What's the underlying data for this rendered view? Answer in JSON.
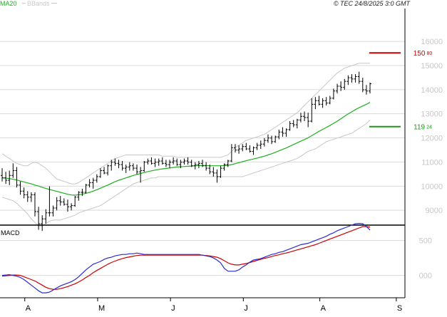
{
  "chart_data": {
    "type": "line",
    "copyright": "© TEC 24/8/2025 3:0 GMT",
    "legend": [
      {
        "name": "MA20",
        "color": "#1fae1f"
      },
      {
        "name": "BBands",
        "color": "#c7c7c7"
      }
    ],
    "price_panel": {
      "ylim": [
        8000,
        16800
      ],
      "yticks": [
        {
          "value": 9000,
          "label": "9000"
        },
        {
          "value": 10000,
          "label": "10000"
        },
        {
          "value": 11000,
          "label": "11000"
        },
        {
          "value": 12000,
          "label": "12000"
        },
        {
          "value": 13000,
          "label": "13000"
        },
        {
          "value": 14000,
          "label": "14000"
        },
        {
          "value": 15000,
          "label": "15000"
        },
        {
          "value": 16000,
          "label": "16000"
        }
      ],
      "ohlc": [
        [
          10000,
          10300,
          9750,
          9900
        ],
        [
          9900,
          10150,
          9650,
          9800
        ],
        [
          9800,
          10200,
          9600,
          10000
        ],
        [
          10000,
          10500,
          9900,
          10200
        ],
        [
          10200,
          10350,
          9500,
          9600
        ],
        [
          9600,
          9750,
          9200,
          9350
        ],
        [
          9350,
          9500,
          9050,
          9200
        ],
        [
          9200,
          9350,
          8900,
          9100
        ],
        [
          9100,
          9300,
          8900,
          9200
        ],
        [
          9200,
          9300,
          8300,
          8500
        ],
        [
          8500,
          8700,
          7750,
          8000
        ],
        [
          8000,
          8350,
          7700,
          8200
        ],
        [
          8200,
          8600,
          8000,
          8450
        ],
        [
          8450,
          9550,
          8300,
          8450
        ],
        [
          8450,
          8750,
          8300,
          8650
        ],
        [
          8650,
          9100,
          8550,
          8950
        ],
        [
          8950,
          9150,
          8750,
          8900
        ],
        [
          8900,
          9050,
          8750,
          8800
        ],
        [
          8800,
          9000,
          8500,
          8700
        ],
        [
          8700,
          8850,
          8550,
          8750
        ],
        [
          8750,
          9150,
          8700,
          9100
        ],
        [
          9100,
          9350,
          8950,
          9300
        ],
        [
          9300,
          9450,
          9150,
          9300
        ],
        [
          9300,
          9650,
          9250,
          9600
        ],
        [
          9600,
          9850,
          9500,
          9700
        ],
        [
          9700,
          9900,
          9450,
          9800
        ],
        [
          9800,
          10050,
          9700,
          9950
        ],
        [
          9950,
          10300,
          9900,
          10200
        ],
        [
          10200,
          10350,
          10050,
          10100
        ],
        [
          10100,
          10450,
          10000,
          10400
        ],
        [
          10400,
          10650,
          10200,
          10550
        ],
        [
          10550,
          10700,
          10400,
          10500
        ],
        [
          10500,
          10650,
          10300,
          10450
        ],
        [
          10450,
          10600,
          10200,
          10300
        ],
        [
          10300,
          10450,
          10100,
          10350
        ],
        [
          10350,
          10550,
          10200,
          10400
        ],
        [
          10400,
          10500,
          10200,
          10300
        ],
        [
          10300,
          10450,
          10050,
          10150
        ],
        [
          10150,
          10350,
          9700,
          10200
        ],
        [
          10200,
          10600,
          10150,
          10550
        ],
        [
          10550,
          10700,
          10450,
          10600
        ],
        [
          10600,
          10750,
          10450,
          10500
        ],
        [
          10500,
          10700,
          10350,
          10550
        ],
        [
          10550,
          10700,
          10400,
          10600
        ],
        [
          10600,
          10750,
          10450,
          10500
        ],
        [
          10500,
          10650,
          10350,
          10450
        ],
        [
          10450,
          10650,
          10300,
          10550
        ],
        [
          10550,
          10750,
          10450,
          10600
        ],
        [
          10600,
          10700,
          10400,
          10450
        ],
        [
          10450,
          10650,
          10300,
          10550
        ],
        [
          10550,
          10700,
          10450,
          10600
        ],
        [
          10600,
          10750,
          10450,
          10550
        ],
        [
          10550,
          10650,
          10350,
          10400
        ],
        [
          10400,
          10550,
          10250,
          10450
        ],
        [
          10450,
          10600,
          10300,
          10500
        ],
        [
          10500,
          10650,
          10350,
          10400
        ],
        [
          10400,
          10550,
          10200,
          10300
        ],
        [
          10300,
          10450,
          10050,
          10150
        ],
        [
          10150,
          10350,
          9950,
          10100
        ],
        [
          10100,
          10250,
          9700,
          9950
        ],
        [
          9950,
          10400,
          9900,
          10300
        ],
        [
          10300,
          10500,
          10200,
          10450
        ],
        [
          10450,
          10650,
          10350,
          10600
        ],
        [
          10600,
          11300,
          10550,
          11150
        ],
        [
          11150,
          11300,
          10950,
          11050
        ],
        [
          11050,
          11250,
          10900,
          11100
        ],
        [
          11100,
          11300,
          11000,
          11200
        ],
        [
          11200,
          11350,
          11050,
          11100
        ],
        [
          11100,
          11250,
          10950,
          11000
        ],
        [
          11000,
          11200,
          10850,
          11150
        ],
        [
          11150,
          11350,
          11050,
          11250
        ],
        [
          11250,
          11450,
          11100,
          11300
        ],
        [
          11300,
          11550,
          11200,
          11450
        ],
        [
          11450,
          11700,
          11350,
          11550
        ],
        [
          11550,
          11650,
          11300,
          11400
        ],
        [
          11400,
          11650,
          11350,
          11600
        ],
        [
          11600,
          11900,
          11500,
          11800
        ],
        [
          11800,
          12000,
          11600,
          11750
        ],
        [
          11750,
          11950,
          11600,
          11900
        ],
        [
          11900,
          12250,
          11850,
          12150
        ],
        [
          12150,
          12300,
          12000,
          12100
        ],
        [
          12100,
          12350,
          11950,
          12300
        ],
        [
          12300,
          12600,
          12200,
          12450
        ],
        [
          12450,
          12650,
          12250,
          12400
        ],
        [
          12400,
          12600,
          12000,
          12250
        ],
        [
          12250,
          13200,
          12200,
          12950
        ],
        [
          12950,
          13250,
          12750,
          13100
        ],
        [
          13100,
          13300,
          12900,
          12950
        ],
        [
          12950,
          13200,
          12800,
          13100
        ],
        [
          13100,
          13250,
          12900,
          13000
        ],
        [
          13000,
          13300,
          12950,
          13200
        ],
        [
          13200,
          13600,
          13150,
          13500
        ],
        [
          13500,
          13800,
          13400,
          13700
        ],
        [
          13700,
          13900,
          13500,
          13650
        ],
        [
          13650,
          14000,
          13550,
          13900
        ],
        [
          13900,
          14150,
          13750,
          14050
        ],
        [
          14050,
          14200,
          13850,
          14000
        ],
        [
          14000,
          14200,
          13850,
          14100
        ],
        [
          14100,
          14300,
          13800,
          13900
        ],
        [
          13900,
          14050,
          13450,
          13550
        ],
        [
          13550,
          13750,
          13350,
          13500
        ],
        [
          13500,
          13850,
          13400,
          13800
        ]
      ],
      "ma20": [
        9900,
        9890,
        9870,
        9840,
        9810,
        9770,
        9730,
        9690,
        9650,
        9600,
        9560,
        9510,
        9460,
        9420,
        9380,
        9340,
        9300,
        9260,
        9220,
        9190,
        9180,
        9200,
        9220,
        9260,
        9300,
        9350,
        9410,
        9470,
        9540,
        9600,
        9670,
        9740,
        9800,
        9850,
        9900,
        9950,
        10000,
        10040,
        10080,
        10120,
        10160,
        10190,
        10220,
        10250,
        10270,
        10290,
        10310,
        10330,
        10350,
        10360,
        10370,
        10380,
        10390,
        10400,
        10410,
        10410,
        10410,
        10400,
        10400,
        10400,
        10400,
        10410,
        10420,
        10450,
        10490,
        10530,
        10570,
        10610,
        10650,
        10680,
        10720,
        10760,
        10800,
        10850,
        10900,
        10960,
        11020,
        11080,
        11140,
        11210,
        11280,
        11350,
        11420,
        11490,
        11560,
        11650,
        11740,
        11830,
        11910,
        11990,
        12070,
        12160,
        12250,
        12350,
        12450,
        12550,
        12640,
        12730,
        12810,
        12880,
        12950,
        13030
      ],
      "bb_upper": [
        10900,
        10800,
        10700,
        10600,
        10500,
        10450,
        10400,
        10400,
        10500,
        10550,
        10500,
        10400,
        10300,
        10150,
        10000,
        9850,
        9800,
        9750,
        9700,
        9650,
        9650,
        9700,
        9800,
        9900,
        10000,
        10100,
        10200,
        10300,
        10400,
        10500,
        10600,
        10700,
        10750,
        10800,
        10850,
        10850,
        10850,
        10850,
        10850,
        10850,
        10850,
        10850,
        10850,
        10850,
        10800,
        10800,
        10800,
        10800,
        10750,
        10750,
        10750,
        10750,
        10750,
        10750,
        10750,
        10750,
        10750,
        10750,
        10750,
        10750,
        10750,
        10800,
        10850,
        11000,
        11150,
        11250,
        11350,
        11450,
        11500,
        11550,
        11600,
        11650,
        11700,
        11800,
        11900,
        12000,
        12100,
        12200,
        12300,
        12400,
        12500,
        12600,
        12750,
        12900,
        13050,
        13200,
        13350,
        13500,
        13650,
        13800,
        13950,
        14100,
        14250,
        14350,
        14450,
        14500,
        14550,
        14600,
        14650,
        14650,
        14650,
        14650
      ],
      "bb_lower": [
        9100,
        9050,
        9000,
        8950,
        8850,
        8700,
        8550,
        8400,
        8200,
        8050,
        7900,
        7900,
        8000,
        8100,
        8150,
        8150,
        8150,
        8200,
        8250,
        8300,
        8350,
        8450,
        8500,
        8550,
        8600,
        8650,
        8700,
        8750,
        8850,
        8950,
        9050,
        9150,
        9250,
        9350,
        9450,
        9550,
        9650,
        9700,
        9750,
        9800,
        9850,
        9900,
        9900,
        9950,
        9950,
        9950,
        9950,
        9950,
        9950,
        9950,
        9950,
        9950,
        9950,
        9950,
        9950,
        9950,
        9950,
        9950,
        9950,
        9950,
        9950,
        9950,
        9950,
        9950,
        9950,
        9950,
        9950,
        10000,
        10050,
        10100,
        10150,
        10200,
        10250,
        10300,
        10350,
        10400,
        10450,
        10500,
        10550,
        10600,
        10650,
        10700,
        10800,
        10900,
        11000,
        11050,
        11100,
        11200,
        11300,
        11400,
        11450,
        11500,
        11550,
        11600,
        11650,
        11700,
        11750,
        11850,
        11950,
        12050,
        12150,
        12300
      ],
      "levels": [
        {
          "value": 15080,
          "label": "150",
          "sublabel": "80",
          "color": "#cc0000"
        },
        {
          "value": 12024,
          "label": "119",
          "sublabel": "24",
          "color": "#1a9a1a"
        }
      ]
    },
    "macd_panel": {
      "title": "MACD",
      "ylim": [
        -300,
        700
      ],
      "yticks": [
        {
          "value": 500,
          "label": "500"
        },
        {
          "value": 0,
          "label": "000"
        }
      ],
      "macd": [
        0,
        5,
        10,
        0,
        -10,
        -30,
        -60,
        -100,
        -140,
        -180,
        -220,
        -250,
        -250,
        -240,
        -210,
        -180,
        -150,
        -130,
        -110,
        -90,
        -60,
        -20,
        30,
        80,
        120,
        160,
        180,
        200,
        230,
        250,
        260,
        280,
        290,
        300,
        300,
        310,
        310,
        320,
        310,
        300,
        300,
        300,
        300,
        300,
        300,
        300,
        300,
        300,
        300,
        300,
        300,
        300,
        300,
        300,
        300,
        290,
        280,
        270,
        250,
        220,
        180,
        100,
        60,
        60,
        60,
        80,
        120,
        150,
        190,
        220,
        230,
        240,
        260,
        280,
        300,
        310,
        330,
        340,
        360,
        380,
        400,
        420,
        440,
        450,
        460,
        480,
        500,
        520,
        540,
        560,
        590,
        610,
        640,
        660,
        680,
        700,
        720,
        740,
        745,
        740,
        700,
        650
      ],
      "signal": [
        -10,
        -5,
        0,
        5,
        5,
        0,
        -20,
        -40,
        -60,
        -80,
        -110,
        -140,
        -170,
        -190,
        -200,
        -200,
        -190,
        -175,
        -160,
        -140,
        -120,
        -95,
        -65,
        -30,
        0,
        40,
        70,
        100,
        130,
        160,
        185,
        205,
        225,
        240,
        255,
        265,
        275,
        285,
        290,
        290,
        290,
        290,
        290,
        290,
        290,
        290,
        290,
        290,
        290,
        290,
        290,
        290,
        290,
        290,
        290,
        290,
        285,
        280,
        270,
        260,
        240,
        210,
        180,
        160,
        150,
        150,
        160,
        170,
        185,
        200,
        215,
        230,
        245,
        255,
        270,
        285,
        295,
        310,
        320,
        335,
        350,
        365,
        380,
        395,
        410,
        425,
        440,
        460,
        480,
        500,
        520,
        540,
        560,
        580,
        600,
        620,
        640,
        660,
        680,
        700,
        700,
        690
      ]
    },
    "x_axis": {
      "labels": [
        {
          "index": 7,
          "label": "A"
        },
        {
          "index": 27,
          "label": "M"
        },
        {
          "index": 47,
          "label": "J"
        },
        {
          "index": 67,
          "label": "J"
        },
        {
          "index": 88,
          "label": "A"
        },
        {
          "index": 109,
          "label": "S"
        }
      ]
    }
  }
}
